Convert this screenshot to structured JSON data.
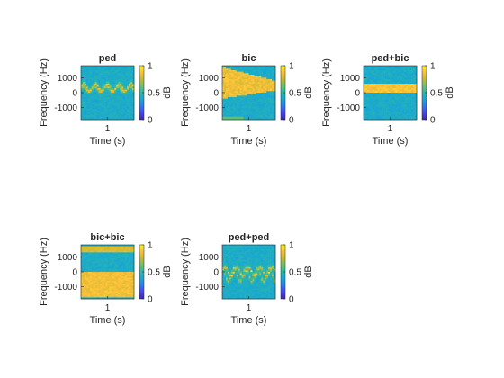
{
  "figure": {
    "background": "#ffffff",
    "colormap": "parula",
    "colormap_stops": [
      "#3e26a8",
      "#4743f7",
      "#2d79f4",
      "#16a5d7",
      "#2ab7aa",
      "#6bc169",
      "#c5bb2f",
      "#fdbe3d",
      "#f9fb15"
    ]
  },
  "chart_data": [
    {
      "type": "heatmap",
      "title": "ped",
      "xlabel": "Time (s)",
      "ylabel": "Frequency (Hz)",
      "xticks": [
        "1"
      ],
      "yticks": [
        1000,
        0,
        -1000
      ],
      "ylim": [
        -1800,
        1800
      ],
      "clim": [
        0,
        1
      ],
      "colorbar": {
        "label": "dB",
        "ticks": [
          "0",
          "0.5",
          "1"
        ]
      },
      "pattern": "sinusoidal",
      "components": [
        {
          "center": 350,
          "amplitude": 250,
          "cycles": 4.5,
          "phase": 0,
          "weight": 0.9
        },
        {
          "center": 250,
          "amplitude": 180,
          "cycles": 4.5,
          "phase": 0.6,
          "weight": 0.7
        }
      ]
    },
    {
      "type": "heatmap",
      "title": "bic",
      "xlabel": "Time (s)",
      "ylabel": "Frequency (Hz)",
      "xticks": [
        "1"
      ],
      "yticks": [
        1000,
        0,
        -1000
      ],
      "ylim": [
        -1800,
        1800
      ],
      "clim": [
        0,
        1
      ],
      "colorbar": {
        "label": "dB",
        "ticks": [
          "0",
          "0.5",
          "1"
        ]
      },
      "pattern": "spread-band",
      "bands": [
        {
          "top_start": 1700,
          "top_end": 800,
          "bottom_start": -400,
          "bottom_end": 150,
          "weight": 0.9
        }
      ]
    },
    {
      "type": "heatmap",
      "title": "ped+bic",
      "xlabel": "Time (s)",
      "ylabel": "Frequency (Hz)",
      "xticks": [
        "1"
      ],
      "yticks": [
        1000,
        0,
        -1000
      ],
      "ylim": [
        -1800,
        1800
      ],
      "clim": [
        0,
        1
      ],
      "colorbar": {
        "label": "dB",
        "ticks": [
          "0",
          "0.5",
          "1"
        ]
      },
      "pattern": "band",
      "bands": [
        {
          "top": 600,
          "bottom": 0,
          "weight": 0.95
        }
      ]
    },
    {
      "type": "heatmap",
      "title": "bic+bic",
      "xlabel": "Time (s)",
      "ylabel": "Frequency (Hz)",
      "xticks": [
        "1"
      ],
      "yticks": [
        1000,
        0,
        -1000
      ],
      "ylim": [
        -1800,
        1800
      ],
      "clim": [
        0,
        1
      ],
      "colorbar": {
        "label": "dB",
        "ticks": [
          "0",
          "0.5",
          "1"
        ]
      },
      "pattern": "band",
      "bands": [
        {
          "top": 1700,
          "bottom": 1300,
          "weight": 0.7
        },
        {
          "top": 0,
          "bottom": -1700,
          "weight": 0.9
        }
      ]
    },
    {
      "type": "heatmap",
      "title": "ped+ped",
      "xlabel": "Time (s)",
      "ylabel": "Frequency (Hz)",
      "xticks": [
        "1"
      ],
      "yticks": [
        1000,
        0,
        -1000
      ],
      "ylim": [
        -1800,
        1800
      ],
      "clim": [
        0,
        1
      ],
      "colorbar": {
        "label": "dB",
        "ticks": [
          "0",
          "0.5",
          "1"
        ]
      },
      "pattern": "sinusoidal",
      "components": [
        {
          "center": 0,
          "amplitude": 300,
          "cycles": 4.5,
          "phase": 0,
          "weight": 0.8
        },
        {
          "center": -200,
          "amplitude": 450,
          "cycles": 4.5,
          "phase": 1.5,
          "weight": 0.6
        }
      ]
    }
  ]
}
